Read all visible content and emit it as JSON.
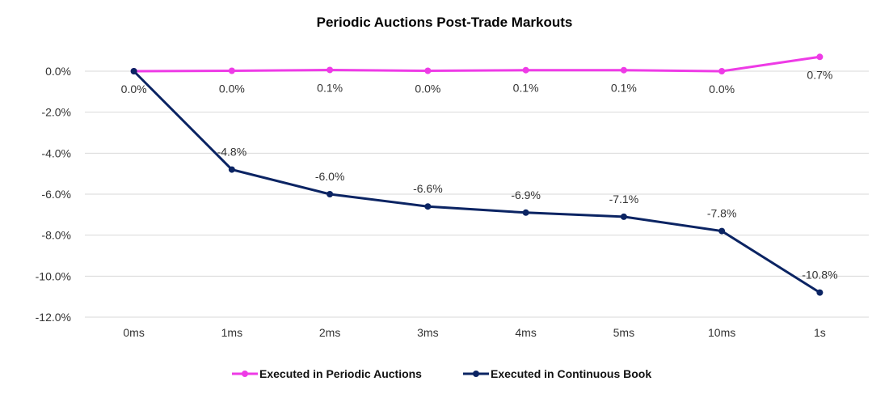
{
  "chart_data": {
    "type": "line",
    "title": "Periodic Auctions Post-Trade Markouts",
    "categories": [
      "0ms",
      "1ms",
      "2ms",
      "3ms",
      "4ms",
      "5ms",
      "10ms",
      "1s"
    ],
    "ylim": [
      -12,
      0
    ],
    "yticks": [
      0,
      -2,
      -4,
      -6,
      -8,
      -10,
      -12
    ],
    "ytick_labels": [
      "0.0%",
      "-2.0%",
      "-4.0%",
      "-6.0%",
      "-8.0%",
      "-10.0%",
      "-12.0%"
    ],
    "grid": true,
    "legend_position": "bottom",
    "series": [
      {
        "name": "Executed in Periodic Auctions",
        "color": "#EE3BE6",
        "values": [
          0.0,
          0.02,
          0.06,
          0.02,
          0.05,
          0.05,
          0.0,
          0.7
        ],
        "labels": [
          "0.0%",
          "0.0%",
          "0.1%",
          "0.0%",
          "0.1%",
          "0.1%",
          "0.0%",
          "0.7%"
        ]
      },
      {
        "name": "Executed in Continuous Book",
        "color": "#0B2463",
        "values": [
          0.0,
          -4.8,
          -6.0,
          -6.6,
          -6.9,
          -7.1,
          -7.8,
          -10.8
        ],
        "labels": [
          "0.0%",
          "-4.8%",
          "-6.0%",
          "-6.6%",
          "-6.9%",
          "-7.1%",
          "-7.8%",
          "-10.8%"
        ]
      }
    ]
  }
}
